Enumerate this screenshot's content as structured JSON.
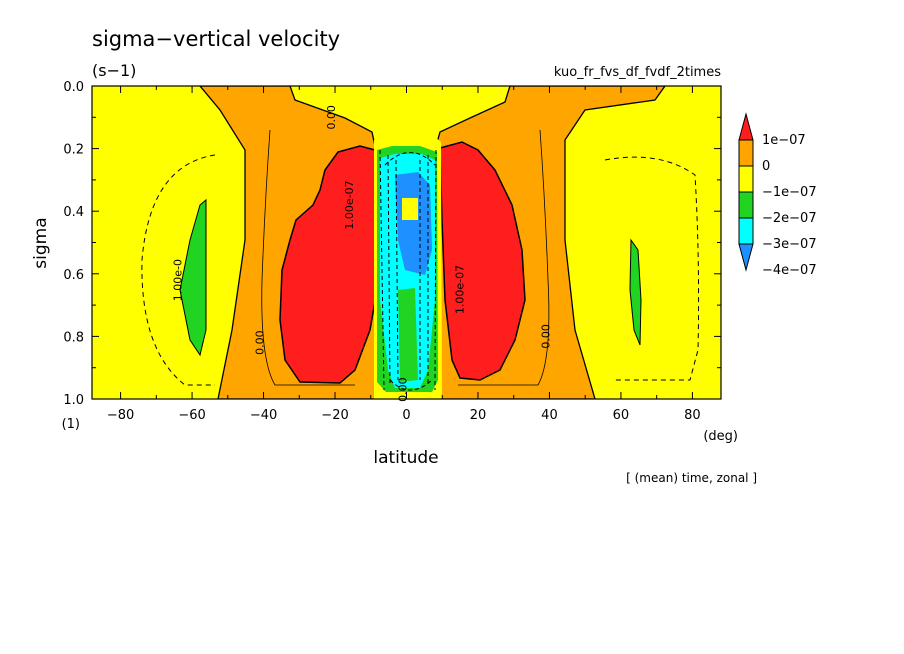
{
  "chart_data": {
    "type": "contour",
    "title": "sigma−vertical velocity",
    "units": "(s−1)",
    "experiment": "kuo_fr_fvs_df_fvdf_2times",
    "xlabel": "latitude",
    "xunits": "(deg)",
    "ylabel": "sigma",
    "yunits": "(1)",
    "note": "[ (mean) time, zonal ]",
    "xlim": [
      -88,
      88
    ],
    "ylim": [
      1.0,
      0.0
    ],
    "x_ticks": [
      -80,
      -60,
      -40,
      -20,
      0,
      20,
      40,
      60,
      80
    ],
    "x_tick_labels": [
      "−80",
      "−60",
      "−40",
      "−20",
      "0",
      "20",
      "40",
      "60",
      "80"
    ],
    "y_ticks": [
      0.0,
      0.2,
      0.4,
      0.6,
      0.8,
      1.0
    ],
    "y_tick_labels": [
      "0.0",
      "0.2",
      "0.4",
      "0.6",
      "0.8",
      "1.0"
    ],
    "contour_labels": [
      {
        "text": "0.00",
        "lat": -40,
        "sigma": 0.82
      },
      {
        "text": "0.00",
        "lat": -20,
        "sigma": 0.1
      },
      {
        "text": "1.00e-0",
        "lat": -63,
        "sigma": 0.62
      },
      {
        "text": "1.00e-07",
        "lat": -15,
        "sigma": 0.38
      },
      {
        "text": "0.00",
        "lat": 0,
        "sigma": 0.97
      },
      {
        "text": "0.00",
        "lat": 40,
        "sigma": 0.8
      },
      {
        "text": "1.00e-07",
        "lat": 16,
        "sigma": 0.65
      }
    ],
    "colorbar": {
      "labels": [
        "1e−07",
        "0",
        "−1e−07",
        "−2e−07",
        "−3e−07",
        "−4e−07"
      ],
      "colors": [
        "#ff1e1e",
        "#ffa500",
        "#ffff00",
        "#21d421",
        "#00ffff",
        "#1e90ff"
      ]
    },
    "regions": [
      {
        "level": "0 to 1e-07",
        "color": "#ffa500",
        "description": "broad positive zones between about -50 and 50 deg"
      },
      {
        "level": ">1e-07",
        "color": "#ff1e1e",
        "description": "maxima near +/-20 deg, sigma 0.2-0.9"
      },
      {
        "level": "<-1e-07 to -4e-07",
        "color": "#00ffff",
        "description": "equatorial downward core between -10 and 10 deg"
      },
      {
        "level": "-1e-07 to -2e-07",
        "color": "#21d421",
        "description": "small patches near +/-62 deg"
      }
    ]
  }
}
